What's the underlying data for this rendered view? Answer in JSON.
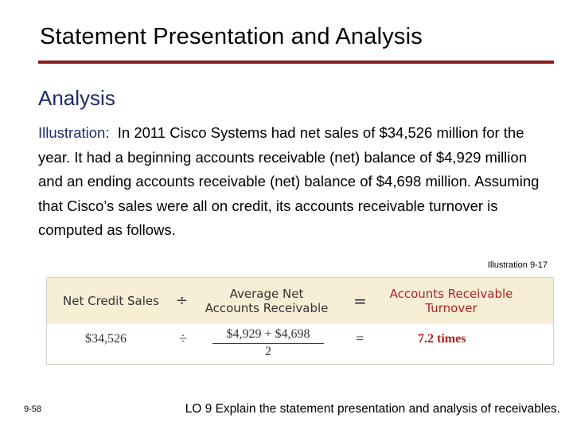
{
  "slide": {
    "title": "Statement Presentation and Analysis",
    "subtitle": "Analysis",
    "body_lead": "Illustration:",
    "body_text": "In 2011 Cisco Systems had net sales of $34,526 million for the year. It had a beginning accounts receivable (net) balance of $4,929 million and an ending accounts receivable (net) balance of $4,698 million. Assuming that Cisco’s sales were all on credit, its accounts receivable turnover is computed as follows.",
    "illustration_label": "Illustration 9-17",
    "slide_number": "9-58",
    "learning_objective": "LO 9  Explain the statement presentation and analysis of receivables."
  },
  "formula": {
    "header": {
      "col1": "Net Credit Sales",
      "op1": "÷",
      "col2": "Average Net Accounts Receivable",
      "op2": "=",
      "col3": "Accounts Receivable Turnover"
    },
    "row": {
      "col1": "$34,526",
      "op1": "÷",
      "numerator": "$4,929 + $4,698",
      "denominator": "2",
      "op2": "=",
      "col3": "7.2 times"
    }
  },
  "colors": {
    "title_rule": "#8b1a1a",
    "subtitle": "#1f2a6b",
    "accent_red": "#b22222",
    "table_header_bg": "#f7eed6"
  }
}
